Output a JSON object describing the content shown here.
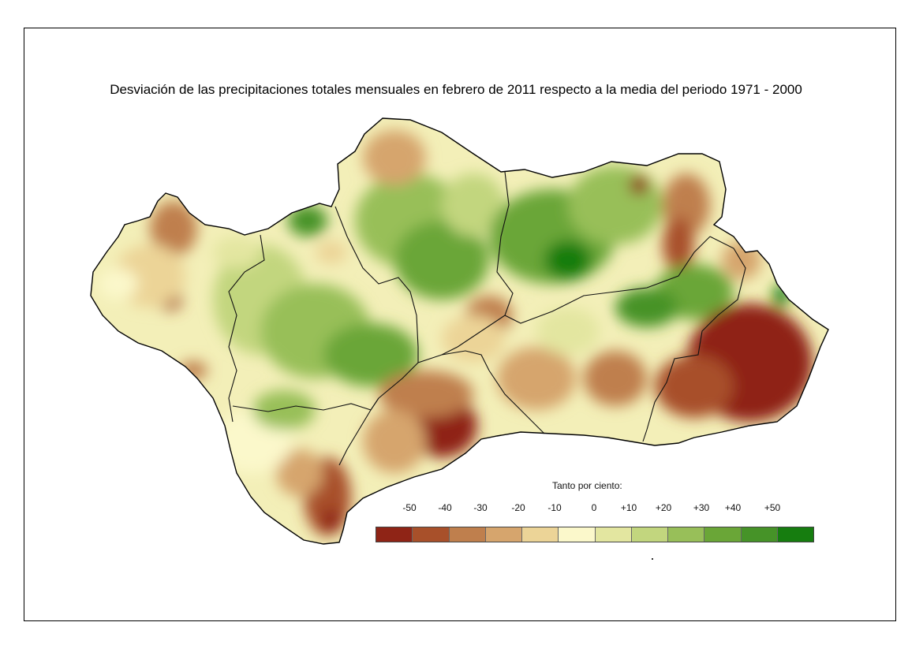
{
  "title": "Desviación de las precipitaciones totales mensuales en febrero de 2011 respecto a la media del periodo 1971 - 2000",
  "legend": {
    "caption": "Tanto por ciento:",
    "ticks": [
      "-50",
      "-40",
      "-30",
      "-20",
      "-10",
      "0",
      "+10",
      "+20",
      "+30",
      "+40",
      "+50"
    ],
    "colors": [
      "#8f2416",
      "#a8502a",
      "#bf7f4d",
      "#d6a56d",
      "#ecd497",
      "#fbf8cb",
      "#e3e6a0",
      "#c2d67e",
      "#98bf59",
      "#6aa637",
      "#469328",
      "#167d0f"
    ]
  },
  "map": {
    "region_fill": "#f3efb8",
    "border_color": "#111111"
  }
}
